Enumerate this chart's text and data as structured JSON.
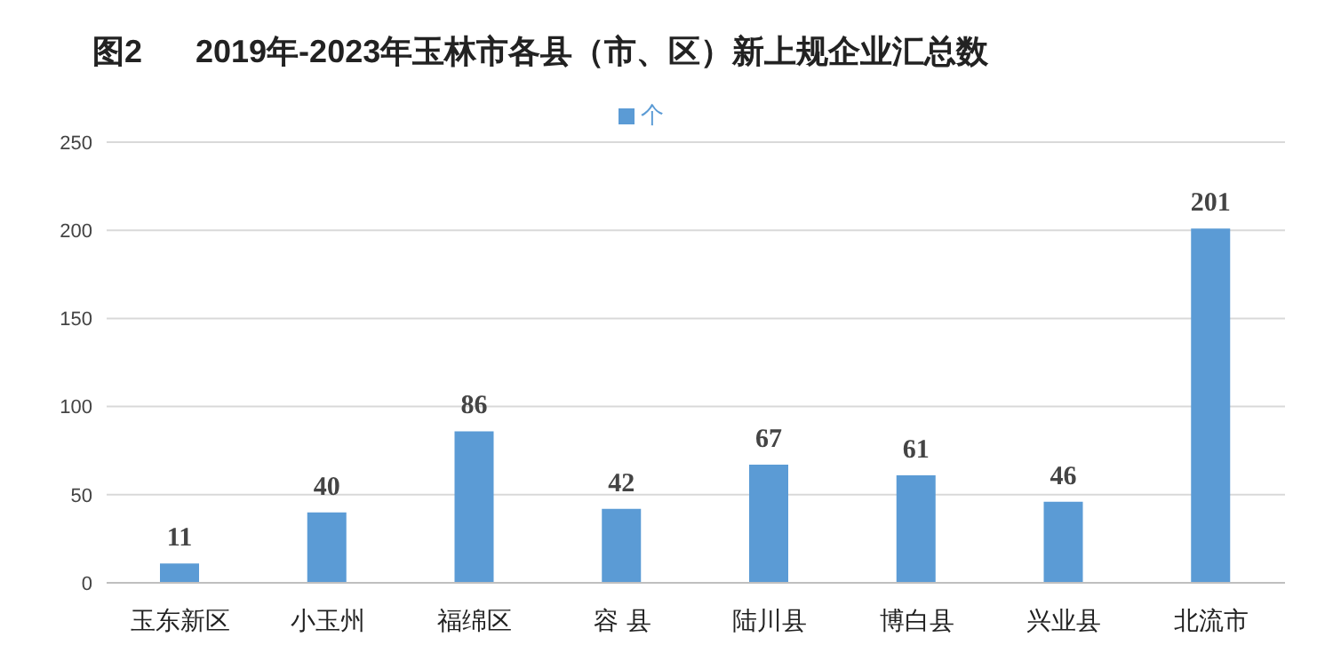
{
  "chart_data": {
    "type": "bar",
    "title": "图2      2019年-2023年玉林市各县（市、区）新上规企业汇总数",
    "categories": [
      "玉东新区",
      "小玉州",
      "福绵区",
      "容 县",
      "陆川县",
      "博白县",
      "兴业县",
      "北流市"
    ],
    "series": [
      {
        "name": "个",
        "color": "#5b9bd5",
        "values": [
          11,
          40,
          86,
          42,
          67,
          61,
          46,
          201
        ]
      }
    ],
    "ylim": [
      0,
      250
    ],
    "yticks": [
      0,
      50,
      100,
      150,
      200,
      250
    ],
    "grid": "y",
    "legend": "top",
    "data_labels": true
  }
}
